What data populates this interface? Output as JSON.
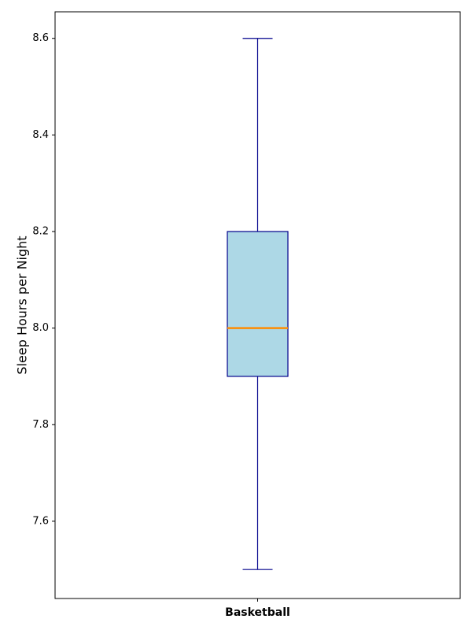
{
  "chart_data": {
    "type": "box",
    "title": "",
    "xlabel": "",
    "ylabel": "Sleep Hours per Night",
    "categories": [
      "Basketball"
    ],
    "boxes": [
      {
        "category": "Basketball",
        "whisker_low": 7.5,
        "q1": 7.9,
        "median": 8.0,
        "q3": 8.2,
        "whisker_high": 8.6
      }
    ],
    "ylim": [
      7.44,
      8.655
    ],
    "yticks": [
      7.6,
      7.8,
      8.0,
      8.2,
      8.4,
      8.6
    ],
    "ytick_labels": [
      "7.6",
      "7.8",
      "8.0",
      "8.2",
      "8.4",
      "8.6"
    ],
    "grid": false,
    "legend": "none",
    "colors": {
      "box_fill": "#add8e6",
      "box_edge": "#00008b",
      "median": "#ff8c00",
      "whisker": "#00008b",
      "axis": "#000000"
    }
  }
}
